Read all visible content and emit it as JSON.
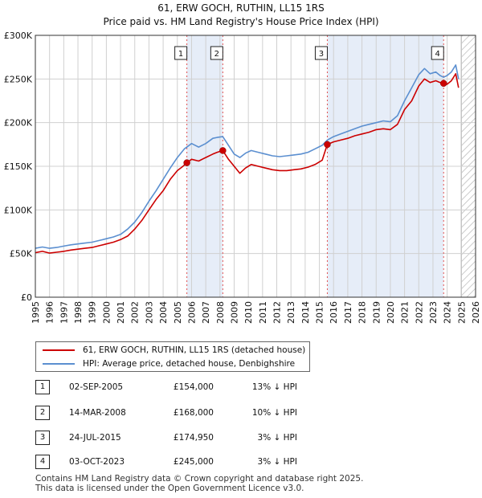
{
  "chart_data": {
    "type": "line",
    "title": "61, ERW GOCH, RUTHIN, LL15 1RS",
    "subtitle": "Price paid vs. HM Land Registry's House Price Index (HPI)",
    "xlim": [
      1995,
      2026
    ],
    "ylim": [
      0,
      300000
    ],
    "x_ticks": [
      1995,
      1996,
      1997,
      1998,
      1999,
      2000,
      2001,
      2002,
      2003,
      2004,
      2005,
      2006,
      2007,
      2008,
      2009,
      2010,
      2011,
      2012,
      2013,
      2014,
      2015,
      2016,
      2017,
      2018,
      2019,
      2020,
      2021,
      2022,
      2023,
      2024,
      2025,
      2026
    ],
    "y_ticks": [
      {
        "value": 0,
        "label": "£0"
      },
      {
        "value": 50000,
        "label": "£50K"
      },
      {
        "value": 100000,
        "label": "£100K"
      },
      {
        "value": 150000,
        "label": "£150K"
      },
      {
        "value": 200000,
        "label": "£200K"
      },
      {
        "value": 250000,
        "label": "£250K"
      },
      {
        "value": 300000,
        "label": "£300K"
      }
    ],
    "grid": true,
    "series": [
      {
        "name": "61, ERW GOCH, RUTHIN, LL15 1RS (detached house)",
        "color": "#cc0000",
        "points": [
          [
            1995.0,
            51000
          ],
          [
            1995.5,
            52500
          ],
          [
            1996.0,
            50500
          ],
          [
            1996.5,
            51500
          ],
          [
            1997.0,
            52500
          ],
          [
            1997.5,
            54000
          ],
          [
            1998.0,
            55000
          ],
          [
            1998.5,
            56000
          ],
          [
            1999.0,
            57000
          ],
          [
            1999.5,
            59000
          ],
          [
            2000.0,
            61000
          ],
          [
            2000.5,
            63000
          ],
          [
            2001.0,
            66000
          ],
          [
            2001.5,
            70000
          ],
          [
            2002.0,
            78000
          ],
          [
            2002.5,
            88000
          ],
          [
            2003.0,
            100000
          ],
          [
            2003.5,
            112000
          ],
          [
            2004.0,
            122000
          ],
          [
            2004.5,
            135000
          ],
          [
            2005.0,
            145000
          ],
          [
            2005.4,
            150000
          ],
          [
            2005.67,
            154000
          ],
          [
            2006.0,
            158000
          ],
          [
            2006.5,
            156000
          ],
          [
            2007.0,
            160000
          ],
          [
            2007.5,
            164000
          ],
          [
            2007.8,
            166000
          ],
          [
            2008.2,
            168000
          ],
          [
            2008.6,
            158000
          ],
          [
            2009.0,
            150000
          ],
          [
            2009.4,
            142000
          ],
          [
            2009.8,
            148000
          ],
          [
            2010.2,
            152000
          ],
          [
            2010.7,
            150000
          ],
          [
            2011.2,
            148000
          ],
          [
            2011.7,
            146000
          ],
          [
            2012.2,
            145000
          ],
          [
            2012.7,
            145000
          ],
          [
            2013.2,
            146000
          ],
          [
            2013.7,
            147000
          ],
          [
            2014.2,
            149000
          ],
          [
            2014.7,
            152000
          ],
          [
            2015.2,
            157000
          ],
          [
            2015.56,
            174950
          ],
          [
            2016.0,
            178000
          ],
          [
            2016.5,
            180000
          ],
          [
            2017.0,
            182000
          ],
          [
            2017.5,
            185000
          ],
          [
            2018.0,
            187000
          ],
          [
            2018.5,
            189000
          ],
          [
            2019.0,
            192000
          ],
          [
            2019.5,
            193000
          ],
          [
            2020.0,
            192000
          ],
          [
            2020.5,
            198000
          ],
          [
            2021.0,
            215000
          ],
          [
            2021.5,
            225000
          ],
          [
            2022.0,
            242000
          ],
          [
            2022.4,
            250000
          ],
          [
            2022.8,
            246000
          ],
          [
            2023.2,
            248000
          ],
          [
            2023.5,
            246000
          ],
          [
            2023.75,
            245000
          ],
          [
            2024.0,
            244000
          ],
          [
            2024.3,
            248000
          ],
          [
            2024.6,
            256000
          ],
          [
            2024.8,
            240000
          ]
        ]
      },
      {
        "name": "HPI: Average price, detached house, Denbighshire",
        "color": "#5b8fd0",
        "points": [
          [
            1995.0,
            56000
          ],
          [
            1995.5,
            57500
          ],
          [
            1996.0,
            56000
          ],
          [
            1996.5,
            57000
          ],
          [
            1997.0,
            58500
          ],
          [
            1997.5,
            60000
          ],
          [
            1998.0,
            61000
          ],
          [
            1998.5,
            62000
          ],
          [
            1999.0,
            63000
          ],
          [
            1999.5,
            65000
          ],
          [
            2000.0,
            67000
          ],
          [
            2000.5,
            69000
          ],
          [
            2001.0,
            72000
          ],
          [
            2001.5,
            78000
          ],
          [
            2002.0,
            86000
          ],
          [
            2002.5,
            97000
          ],
          [
            2003.0,
            110000
          ],
          [
            2003.5,
            122000
          ],
          [
            2004.0,
            135000
          ],
          [
            2004.5,
            148000
          ],
          [
            2005.0,
            160000
          ],
          [
            2005.5,
            170000
          ],
          [
            2006.0,
            176000
          ],
          [
            2006.5,
            172000
          ],
          [
            2007.0,
            176000
          ],
          [
            2007.5,
            182000
          ],
          [
            2007.8,
            183000
          ],
          [
            2008.2,
            184000
          ],
          [
            2008.6,
            174000
          ],
          [
            2009.0,
            164000
          ],
          [
            2009.4,
            160000
          ],
          [
            2009.8,
            165000
          ],
          [
            2010.2,
            168000
          ],
          [
            2010.7,
            166000
          ],
          [
            2011.2,
            164000
          ],
          [
            2011.7,
            162000
          ],
          [
            2012.2,
            161000
          ],
          [
            2012.7,
            162000
          ],
          [
            2013.2,
            163000
          ],
          [
            2013.7,
            164000
          ],
          [
            2014.2,
            166000
          ],
          [
            2014.7,
            170000
          ],
          [
            2015.2,
            174000
          ],
          [
            2015.56,
            180000
          ],
          [
            2016.0,
            184000
          ],
          [
            2016.5,
            187000
          ],
          [
            2017.0,
            190000
          ],
          [
            2017.5,
            193000
          ],
          [
            2018.0,
            196000
          ],
          [
            2018.5,
            198000
          ],
          [
            2019.0,
            200000
          ],
          [
            2019.5,
            202000
          ],
          [
            2020.0,
            201000
          ],
          [
            2020.5,
            208000
          ],
          [
            2021.0,
            225000
          ],
          [
            2021.5,
            240000
          ],
          [
            2022.0,
            255000
          ],
          [
            2022.4,
            262000
          ],
          [
            2022.8,
            256000
          ],
          [
            2023.2,
            258000
          ],
          [
            2023.5,
            254000
          ],
          [
            2023.75,
            252000
          ],
          [
            2024.0,
            254000
          ],
          [
            2024.3,
            258000
          ],
          [
            2024.6,
            266000
          ],
          [
            2024.8,
            250000
          ]
        ]
      }
    ],
    "sales": [
      {
        "label": "1",
        "x": 2005.67,
        "value": 154000
      },
      {
        "label": "2",
        "x": 2008.2,
        "value": 168000
      },
      {
        "label": "3",
        "x": 2015.56,
        "value": 174950
      },
      {
        "label": "4",
        "x": 2023.75,
        "value": 245000
      }
    ],
    "forecast_from": 2025.0
  },
  "colors": {
    "price_line": "#cc0000",
    "hpi_line": "#5b8fd0",
    "grid": "#d0d0d0",
    "marker_fill": "#cc0000",
    "highlight": "#e6edf8",
    "hatch": "#bbbbbb",
    "sale_vline": "#e05050"
  },
  "legend": {
    "price_label": "61, ERW GOCH, RUTHIN, LL15 1RS (detached house)",
    "hpi_label": "HPI: Average price, detached house, Denbighshire"
  },
  "transactions": [
    {
      "num": "1",
      "date": "02-SEP-2005",
      "price": "£154,000",
      "delta": "13% ↓ HPI"
    },
    {
      "num": "2",
      "date": "14-MAR-2008",
      "price": "£168,000",
      "delta": "10% ↓ HPI"
    },
    {
      "num": "3",
      "date": "24-JUL-2015",
      "price": "£174,950",
      "delta": "3% ↓ HPI"
    },
    {
      "num": "4",
      "date": "03-OCT-2023",
      "price": "£245,000",
      "delta": "3% ↓ HPI"
    }
  ],
  "footer": {
    "line1": "Contains HM Land Registry data © Crown copyright and database right 2025.",
    "line2": "This data is licensed under the Open Government Licence v3.0."
  }
}
